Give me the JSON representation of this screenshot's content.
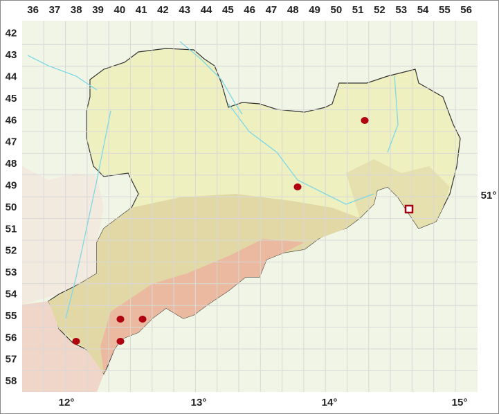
{
  "column_labels": [
    "36",
    "37",
    "38",
    "39",
    "40",
    "41",
    "42",
    "43",
    "44",
    "45",
    "46",
    "47",
    "48",
    "49",
    "50",
    "51",
    "52",
    "53",
    "54",
    "55",
    "56"
  ],
  "row_labels": [
    "42",
    "43",
    "44",
    "45",
    "46",
    "47",
    "48",
    "49",
    "50",
    "51",
    "52",
    "53",
    "54",
    "55",
    "56",
    "57",
    "58"
  ],
  "longitude_labels": [
    "12°",
    "13°",
    "14°",
    "15°"
  ],
  "latitude_labels": [
    "51°"
  ]
}
